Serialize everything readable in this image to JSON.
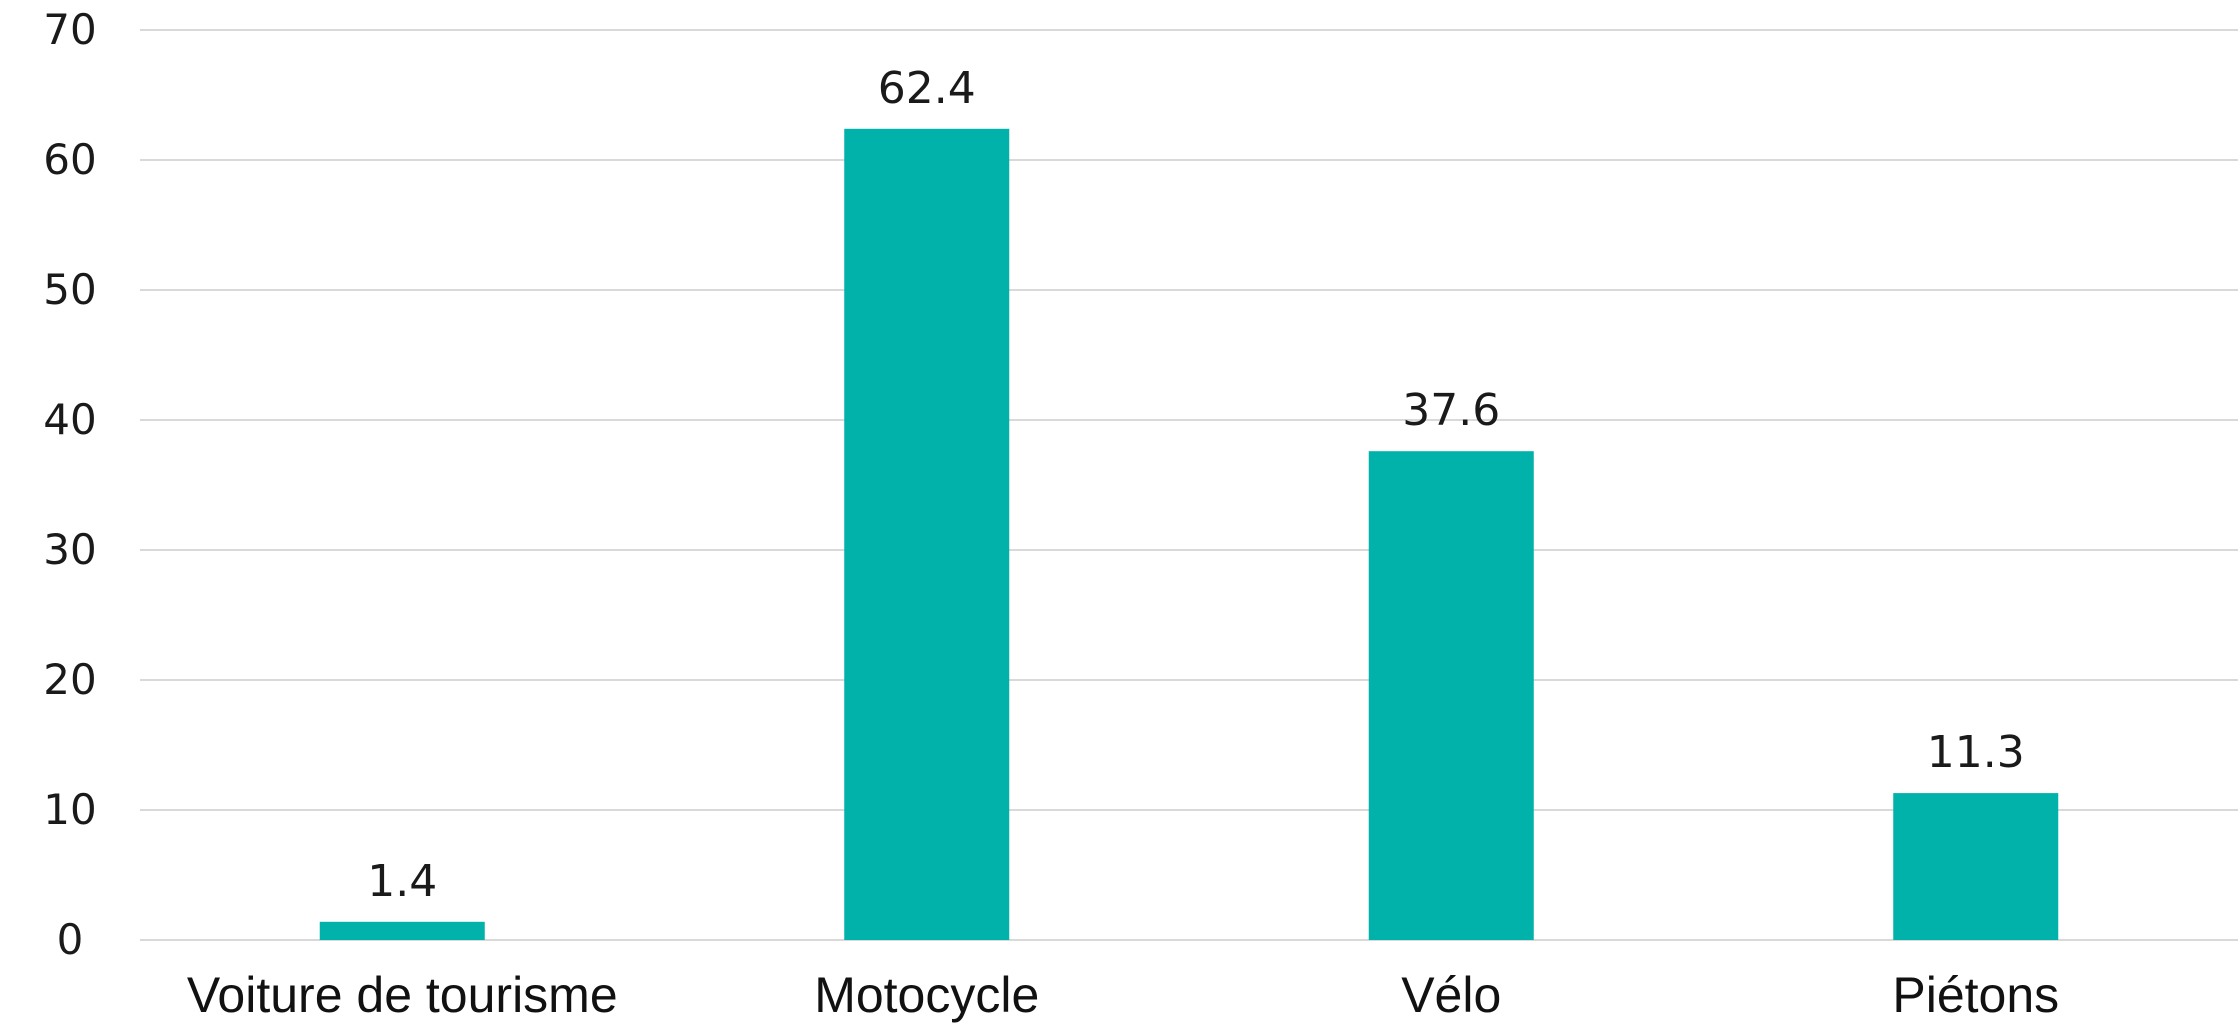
{
  "chart_data": {
    "type": "bar",
    "categories": [
      "Voiture de tourisme",
      "Motocycle",
      "Vélo",
      "Piétons"
    ],
    "values": [
      1.4,
      62.4,
      37.6,
      11.3
    ],
    "value_labels": [
      "1.4",
      "62.4",
      "37.6",
      "11.3"
    ],
    "title": "",
    "xlabel": "",
    "ylabel": "",
    "ylim": [
      0,
      70
    ],
    "yticks": [
      0,
      10,
      20,
      30,
      40,
      50,
      60,
      70
    ],
    "grid": true,
    "legend": "none",
    "bar_color": "#00b2a9"
  }
}
